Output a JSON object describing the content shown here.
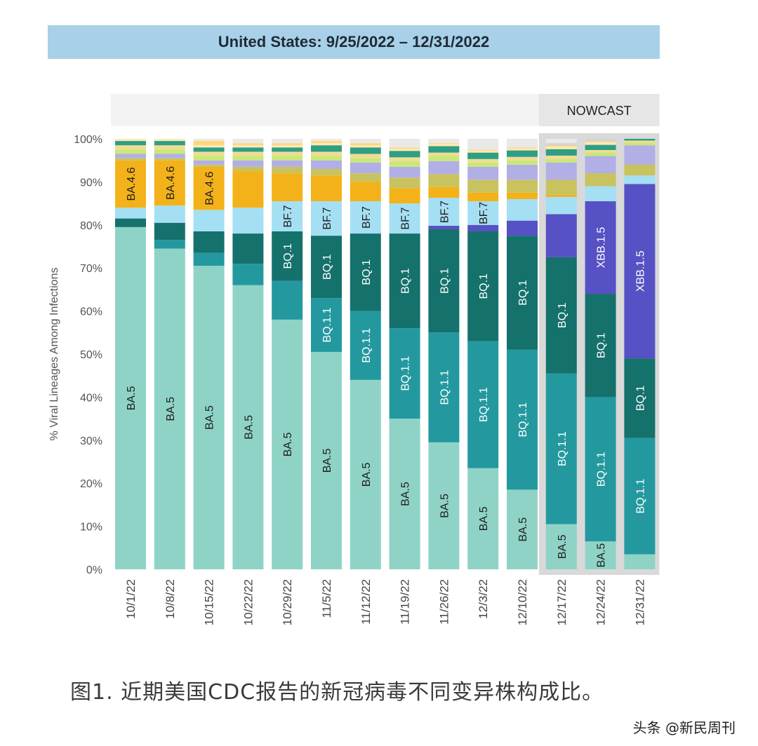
{
  "chart_data": {
    "type": "bar",
    "stacked": true,
    "title": "United States: 9/25/2022 – 12/31/2022",
    "nowcast_label": "NOWCAST",
    "ylabel": "% Viral Lineages Among Infections",
    "xlabel": "",
    "ylim": [
      0,
      100
    ],
    "y_ticks": [
      {
        "value": 0,
        "label": "0%"
      },
      {
        "value": 10,
        "label": "10%"
      },
      {
        "value": 20,
        "label": "20%"
      },
      {
        "value": 30,
        "label": "30%"
      },
      {
        "value": 40,
        "label": "40%"
      },
      {
        "value": 50,
        "label": "50%"
      },
      {
        "value": 60,
        "label": "60%"
      },
      {
        "value": 70,
        "label": "70%"
      },
      {
        "value": 80,
        "label": "80%"
      },
      {
        "value": 90,
        "label": "90%"
      },
      {
        "value": 100,
        "label": "100%"
      }
    ],
    "categories": [
      "10/1/22",
      "10/8/22",
      "10/15/22",
      "10/22/22",
      "10/29/22",
      "11/5/22",
      "11/12/22",
      "11/19/22",
      "11/26/22",
      "12/3/22",
      "12/10/22",
      "12/17/22",
      "12/24/22",
      "12/31/22"
    ],
    "nowcast_categories": [
      "12/17/22",
      "12/24/22",
      "12/31/22"
    ],
    "series": [
      {
        "name": "BA.5",
        "color": "#8fd3c7",
        "values": [
          79.5,
          74.5,
          70.5,
          66,
          58,
          50.5,
          44,
          35,
          29.5,
          23.5,
          18.5,
          10.5,
          6.5,
          3.5
        ]
      },
      {
        "name": "BQ.1.1",
        "color": "#23999f",
        "values": [
          0,
          0,
          0,
          0,
          0,
          0,
          0,
          0,
          0,
          0,
          0,
          0,
          0,
          0
        ]
      },
      {
        "name": "BQ.1.1",
        "color": "#23999f",
        "values": [
          0,
          2,
          3,
          5,
          9,
          12.5,
          16,
          21,
          25.5,
          29.5,
          32.5,
          35,
          33.5,
          27
        ]
      },
      {
        "name": "BQ.1",
        "color": "#15716c",
        "values": [
          2,
          4,
          5,
          7,
          11.5,
          14.5,
          18,
          22,
          24,
          25.5,
          26.5,
          27,
          24,
          18.5
        ]
      },
      {
        "name": "XBB.1.5",
        "color": "#5651c4",
        "values": [
          0,
          0,
          0,
          0,
          0,
          0,
          0,
          0,
          0.8,
          1.5,
          3.5,
          10,
          21.5,
          40.5
        ]
      },
      {
        "name": "BF.7",
        "color": "#a5dff3",
        "values": [
          2.5,
          4,
          5,
          6,
          7,
          8,
          7.5,
          7,
          6.5,
          5.5,
          5,
          4,
          3.5,
          2
        ]
      },
      {
        "name": "BA.4.6",
        "color": "#f3b219",
        "values": [
          11,
          10.5,
          10,
          8.5,
          6.5,
          6,
          4.5,
          3.5,
          2.5,
          2,
          1.5,
          0.5,
          0,
          0
        ]
      },
      {
        "name": "Other",
        "color": "#c8c35e",
        "values": [
          0.5,
          0.5,
          0.5,
          1,
          1.5,
          1.5,
          2,
          2.5,
          3,
          3,
          3,
          3.5,
          3,
          2.5
        ]
      },
      {
        "name": "Other",
        "color": "#b2aee6",
        "values": [
          1,
          1,
          1,
          1.5,
          1.5,
          2,
          2.5,
          2.5,
          3,
          3,
          3.5,
          4,
          4,
          4.5
        ]
      },
      {
        "name": "Other",
        "color": "#c9e878",
        "values": [
          1,
          1,
          1,
          1,
          1,
          1,
          1,
          1.2,
          1.2,
          1,
          1,
          0.8,
          0.8,
          0.6
        ]
      },
      {
        "name": "Other",
        "color": "#eedd93",
        "values": [
          1,
          1,
          1,
          1,
          1,
          1,
          1,
          1,
          0.8,
          0.8,
          0.8,
          0.8,
          0.6,
          0.5
        ]
      },
      {
        "name": "Other",
        "color": "#2e9e84",
        "values": [
          1,
          1,
          1,
          1,
          1,
          1.5,
          1.5,
          1.5,
          1.5,
          1.5,
          1.5,
          1.5,
          1.2,
          0.8
        ]
      },
      {
        "name": "Other",
        "color": "#ffe9b5",
        "values": [
          0.5,
          0.5,
          0.5,
          0.5,
          0.5,
          0.5,
          0.5,
          0.5,
          0.5,
          0.5,
          0.5,
          0.6,
          0.6,
          0.5
        ]
      },
      {
        "name": "Other",
        "color": "#ffd77a",
        "values": [
          1,
          1,
          1,
          0.5,
          0.5,
          0.5,
          0.5,
          0.3,
          0.2,
          0.2,
          0.2,
          0.3,
          0.2,
          0.2
        ]
      },
      {
        "name": "Other",
        "color": "#cfd6d9",
        "values": [
          0,
          0,
          0,
          0,
          0,
          0,
          0,
          0,
          0,
          0,
          0,
          0.5,
          0.6,
          0.5
        ]
      }
    ],
    "segment_labels": [
      {
        "series": 0,
        "category": 0,
        "text": "BA.5"
      },
      {
        "series": 0,
        "category": 1,
        "text": "BA.5"
      },
      {
        "series": 0,
        "category": 2,
        "text": "BA.5"
      },
      {
        "series": 0,
        "category": 3,
        "text": "BA.5"
      },
      {
        "series": 0,
        "category": 4,
        "text": "BA.5"
      },
      {
        "series": 0,
        "category": 5,
        "text": "BA.5"
      },
      {
        "series": 0,
        "category": 6,
        "text": "BA.5"
      },
      {
        "series": 0,
        "category": 7,
        "text": "BA.5"
      },
      {
        "series": 0,
        "category": 8,
        "text": "BA.5"
      },
      {
        "series": 0,
        "category": 9,
        "text": "BA.5"
      },
      {
        "series": 0,
        "category": 10,
        "text": "BA.5"
      },
      {
        "series": 0,
        "category": 11,
        "text": "BA.5"
      },
      {
        "series": 0,
        "category": 12,
        "text": "BA.5"
      },
      {
        "series": 2,
        "category": 5,
        "text": "BQ.1.1"
      },
      {
        "series": 2,
        "category": 6,
        "text": "BQ.1.1"
      },
      {
        "series": 2,
        "category": 7,
        "text": "BQ.1.1"
      },
      {
        "series": 2,
        "category": 8,
        "text": "BQ.1.1"
      },
      {
        "series": 2,
        "category": 9,
        "text": "BQ.1.1"
      },
      {
        "series": 2,
        "category": 10,
        "text": "BQ.1.1"
      },
      {
        "series": 2,
        "category": 11,
        "text": "BQ.1.1"
      },
      {
        "series": 2,
        "category": 12,
        "text": "BQ.1.1"
      },
      {
        "series": 2,
        "category": 13,
        "text": "BQ.1.1"
      },
      {
        "series": 3,
        "category": 4,
        "text": "BQ.1"
      },
      {
        "series": 3,
        "category": 5,
        "text": "BQ.1"
      },
      {
        "series": 3,
        "category": 6,
        "text": "BQ.1"
      },
      {
        "series": 3,
        "category": 7,
        "text": "BQ.1"
      },
      {
        "series": 3,
        "category": 8,
        "text": "BQ.1"
      },
      {
        "series": 3,
        "category": 9,
        "text": "BQ.1"
      },
      {
        "series": 3,
        "category": 10,
        "text": "BQ.1"
      },
      {
        "series": 3,
        "category": 11,
        "text": "BQ.1"
      },
      {
        "series": 3,
        "category": 12,
        "text": "BQ.1"
      },
      {
        "series": 3,
        "category": 13,
        "text": "BQ.1"
      },
      {
        "series": 4,
        "category": 12,
        "text": "XBB.1.5"
      },
      {
        "series": 4,
        "category": 13,
        "text": "XBB.1.5"
      },
      {
        "series": 5,
        "category": 4,
        "text": "BF.7"
      },
      {
        "series": 5,
        "category": 5,
        "text": "BF.7"
      },
      {
        "series": 5,
        "category": 6,
        "text": "BF.7"
      },
      {
        "series": 5,
        "category": 7,
        "text": "BF.7"
      },
      {
        "series": 5,
        "category": 8,
        "text": "BF.7"
      },
      {
        "series": 5,
        "category": 9,
        "text": "BF.7"
      },
      {
        "series": 6,
        "category": 0,
        "text": "BA.4.6"
      },
      {
        "series": 6,
        "category": 1,
        "text": "BA.4.6"
      },
      {
        "series": 6,
        "category": 2,
        "text": "BA.4.6"
      }
    ],
    "legend": "none",
    "grid": false
  },
  "caption": "图1. 近期美国CDC报告的新冠病毒不同变异株构成比。",
  "watermark": "头条 @新民周刊"
}
